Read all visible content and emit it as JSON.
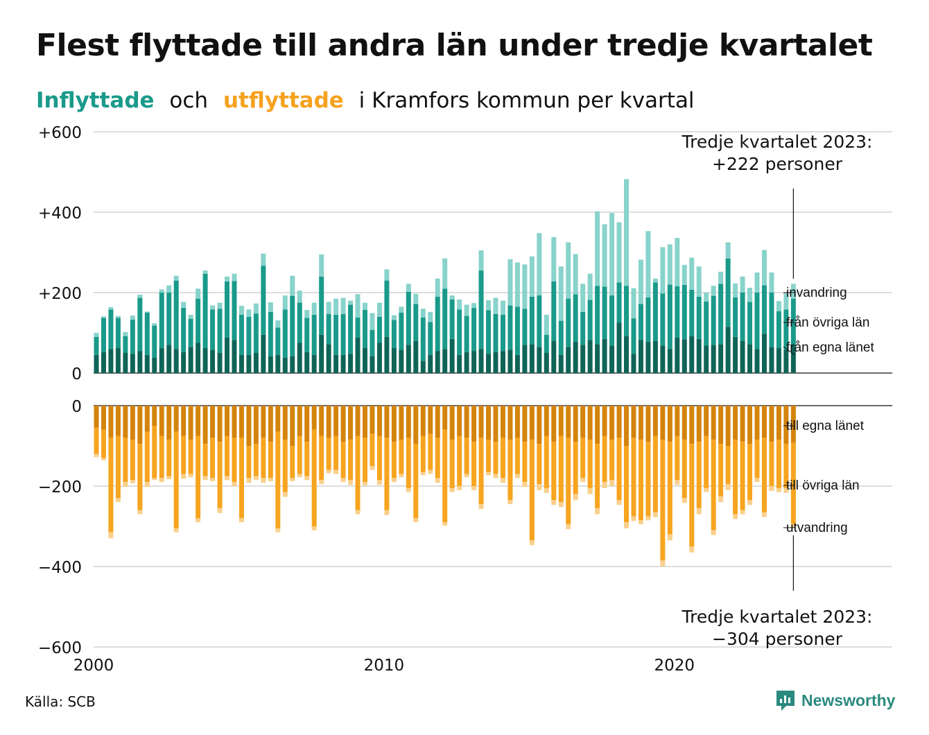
{
  "title": "Flest flyttade till andra län under tredje kvartalet",
  "subtitle": {
    "part1": "Inflyttade",
    "part2": "och",
    "part3": "utflyttade",
    "part4": "i Kramfors kommun per kvartal"
  },
  "source": "Källa: SCB",
  "logo": "Newsworthy",
  "colors": {
    "in_own": "#0f6458",
    "in_other": "#1a9a8a",
    "in_immig": "#88d3cb",
    "out_own": "#d4840c",
    "out_other": "#f7a41f",
    "out_emig": "#f9d08c",
    "grid": "#dddddd"
  },
  "annotations": {
    "top_line1": "Tredje kvartalet 2023:",
    "top_line2": "+222 personer",
    "bottom_line1": "Tredje kvartalet 2023:",
    "bottom_line2": "−304 personer"
  },
  "chart_data": {
    "type": "bar",
    "stacked": true,
    "x_start": "2000 Q1",
    "x_end": "2023 Q3",
    "xticks": [
      "2000",
      "2010",
      "2020"
    ],
    "xlim": [
      2000,
      2027.5
    ],
    "panels": [
      {
        "name": "inflyttade",
        "ylim": [
          0,
          600
        ],
        "yticks": [
          "+600",
          "+400",
          "+200",
          "0"
        ],
        "series": [
          {
            "name": "från egna länet",
            "values": [
              45,
              52,
              60,
              62,
              50,
              48,
              55,
              45,
              38,
              62,
              70,
              60,
              52,
              65,
              75,
              62,
              58,
              50,
              88,
              82,
              45,
              45,
              50,
              95,
              42,
              45,
              38,
              42,
              75,
              52,
              45,
              95,
              72,
              45,
              45,
              48,
              88,
              62,
              42,
              75,
              90,
              62,
              58,
              70,
              80,
              30,
              45,
              55,
              60,
              85,
              45,
              52,
              55,
              60,
              48,
              52,
              55,
              58,
              45,
              70,
              72,
              65,
              50,
              80,
              45,
              65,
              78,
              70,
              82,
              72,
              85,
              68,
              125,
              92,
              48,
              82,
              78,
              80,
              68,
              60,
              88,
              84,
              92,
              85,
              68,
              70,
              72,
              115,
              90,
              80,
              72,
              60,
              98,
              65,
              62,
              58,
              70
            ]
          },
          {
            "name": "från övriga län",
            "values": [
              45,
              85,
              98,
              75,
              42,
              85,
              132,
              105,
              80,
              138,
              130,
              170,
              110,
              70,
              110,
              185,
              100,
              110,
              140,
              147,
              100,
              95,
              98,
              172,
              110,
              68,
              120,
              150,
              100,
              85,
              100,
              145,
              75,
              100,
              102,
              122,
              50,
              95,
              65,
              65,
              140,
              70,
              92,
              132,
              92,
              108,
              82,
              135,
              150,
              98,
              113,
              90,
              107,
              195,
              108,
              95,
              90,
              110,
              120,
              90,
              118,
              128,
              45,
              148,
              85,
              120,
              118,
              82,
              100,
              145,
              130,
              125,
              100,
              125,
              88,
              90,
              110,
              145,
              130,
              160,
              128,
              135,
              115,
              105,
              110,
              122,
              150,
              170,
              98,
              120,
              105,
              140,
              120,
              135,
              92,
              100,
              115
            ]
          },
          {
            "name": "invandring",
            "values": [
              10,
              4,
              6,
              5,
              10,
              10,
              8,
              3,
              6,
              8,
              18,
              12,
              15,
              10,
              25,
              8,
              10,
              15,
              12,
              18,
              22,
              18,
              25,
              30,
              24,
              18,
              35,
              50,
              30,
              20,
              30,
              55,
              30,
              40,
              40,
              10,
              58,
              18,
              42,
              35,
              28,
              12,
              15,
              20,
              25,
              22,
              25,
              45,
              75,
              10,
              25,
              28,
              12,
              50,
              25,
              40,
              35,
              115,
              110,
              110,
              100,
              155,
              50,
              110,
              135,
              140,
              100,
              70,
              65,
              185,
              155,
              205,
              150,
              265,
              75,
              110,
              165,
              10,
              115,
              100,
              120,
              50,
              80,
              75,
              22,
              25,
              30,
              40,
              35,
              40,
              35,
              50,
              88,
              50,
              25,
              40,
              37
            ]
          }
        ]
      },
      {
        "name": "utflyttade",
        "ylim": [
          -600,
          0
        ],
        "yticks": [
          "0",
          "−200",
          "−400",
          "−600"
        ],
        "series": [
          {
            "name": "till egna länet",
            "values": [
              -55,
              -60,
              -80,
              -75,
              -80,
              -85,
              -95,
              -65,
              -50,
              -75,
              -85,
              -65,
              -75,
              -85,
              -75,
              -95,
              -80,
              -90,
              -75,
              -80,
              -80,
              -100,
              -95,
              -80,
              -90,
              -65,
              -85,
              -100,
              -75,
              -90,
              -60,
              -75,
              -80,
              -75,
              -90,
              -85,
              -75,
              -80,
              -70,
              -75,
              -80,
              -90,
              -85,
              -80,
              -95,
              -75,
              -70,
              -80,
              -60,
              -85,
              -75,
              -80,
              -90,
              -80,
              -85,
              -90,
              -80,
              -85,
              -80,
              -90,
              -85,
              -95,
              -75,
              -90,
              -75,
              -80,
              -90,
              -80,
              -85,
              -95,
              -75,
              -85,
              -80,
              -100,
              -80,
              -85,
              -90,
              -75,
              -85,
              -90,
              -75,
              -85,
              -95,
              -90,
              -75,
              -85,
              -95,
              -100,
              -85,
              -90,
              -95,
              -85,
              -80,
              -90,
              -85,
              -95,
              -92
            ]
          },
          {
            "name": "till övriga län",
            "values": [
              -65,
              -70,
              -235,
              -155,
              -110,
              -100,
              -165,
              -125,
              -130,
              -105,
              -90,
              -240,
              -95,
              -85,
              -205,
              -80,
              -100,
              -165,
              -100,
              -110,
              -200,
              -80,
              -80,
              -100,
              -90,
              -240,
              -130,
              -80,
              -95,
              -85,
              -240,
              -110,
              -80,
              -85,
              -90,
              -100,
              -185,
              -110,
              -80,
              -110,
              -180,
              -90,
              -85,
              -125,
              -185,
              -90,
              -90,
              -100,
              -230,
              -120,
              -125,
              -90,
              -110,
              -165,
              -80,
              -80,
              -100,
              -150,
              -90,
              -100,
              -250,
              -100,
              -130,
              -145,
              -165,
              -215,
              -130,
              -100,
              -120,
              -160,
              -115,
              -100,
              -155,
              -190,
              -195,
              -200,
              -185,
              -190,
              -300,
              -230,
              -110,
              -145,
              -255,
              -165,
              -130,
              -225,
              -130,
              -95,
              -185,
              -170,
              -140,
              -95,
              -185,
              -110,
              -120,
              -110,
              -202
            ]
          },
          {
            "name": "utvandring",
            "values": [
              -8,
              -6,
              -15,
              -10,
              -12,
              -8,
              -10,
              -12,
              -5,
              -10,
              -8,
              -10,
              -12,
              -8,
              -10,
              -10,
              -8,
              -12,
              -10,
              -10,
              -10,
              -12,
              -10,
              -12,
              -8,
              -10,
              -12,
              -8,
              -8,
              -10,
              -10,
              -10,
              -8,
              -10,
              -10,
              -12,
              -10,
              -8,
              -10,
              -12,
              -12,
              -10,
              -8,
              -10,
              -10,
              -8,
              -10,
              -12,
              -8,
              -10,
              -10,
              -8,
              -10,
              -12,
              -8,
              -10,
              -12,
              -10,
              -10,
              -12,
              -12,
              -15,
              -12,
              -12,
              -12,
              -12,
              -15,
              -10,
              -15,
              -15,
              -15,
              -15,
              -12,
              -15,
              -12,
              -10,
              -10,
              -12,
              -15,
              -15,
              -12,
              -12,
              -15,
              -15,
              -10,
              -12,
              -15,
              -15,
              -12,
              -10,
              -12,
              -10,
              -12,
              -12,
              -10,
              -12,
              -10
            ]
          }
        ]
      }
    ],
    "series_labels_in": [
      "invandring",
      "från övriga län",
      "från egna länet"
    ],
    "series_labels_out": [
      "till egna länet",
      "till övriga län",
      "utvandring"
    ]
  }
}
